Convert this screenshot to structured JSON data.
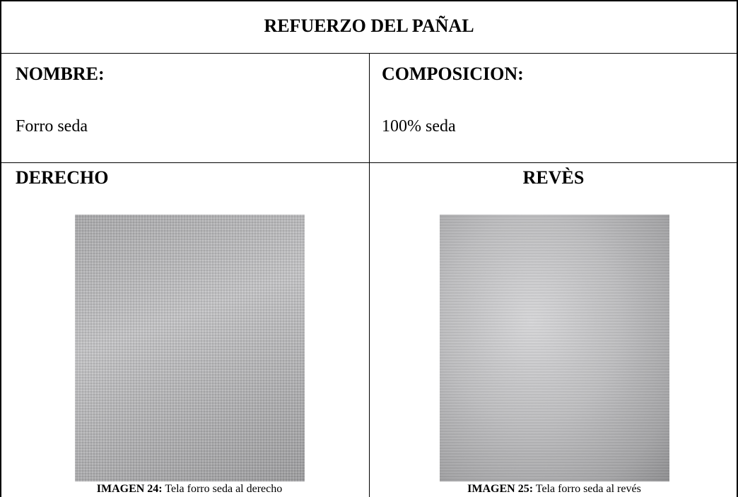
{
  "header": {
    "title": "REFUERZO DEL PAÑAL"
  },
  "fields": [
    {
      "label": "NOMBRE:",
      "value": "Forro seda"
    },
    {
      "label": "COMPOSICION:",
      "value": "100% seda"
    }
  ],
  "images": [
    {
      "heading": "DERECHO",
      "caption_label": "IMAGEN 24:",
      "caption_text": "Tela forro seda al derecho"
    },
    {
      "heading": "REVÈS",
      "caption_label": "IMAGEN 25:",
      "caption_text": "Tela forro seda al revés"
    }
  ]
}
